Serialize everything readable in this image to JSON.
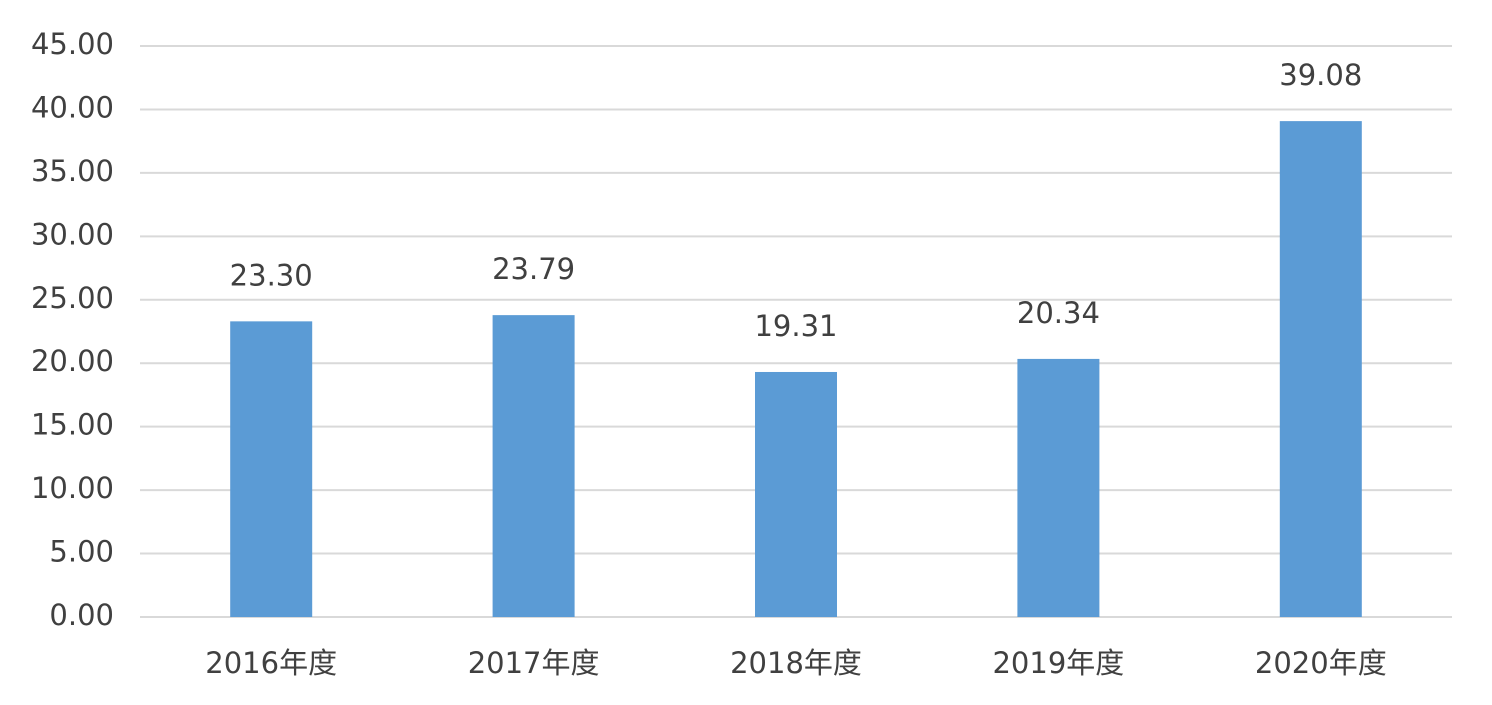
{
  "chart_data": {
    "type": "bar",
    "categories": [
      "2016年度",
      "2017年度",
      "2018年度",
      "2019年度",
      "2020年度"
    ],
    "values": [
      23.3,
      23.79,
      19.31,
      20.34,
      39.08
    ],
    "value_labels": [
      "23.30",
      "23.79",
      "19.31",
      "20.34",
      "39.08"
    ],
    "color": "#5b9bd5",
    "ylim": [
      0,
      45
    ],
    "yticks": [
      {
        "value": 0,
        "label": "0.00"
      },
      {
        "value": 5,
        "label": "5.00"
      },
      {
        "value": 10,
        "label": "10.00"
      },
      {
        "value": 15,
        "label": "15.00"
      },
      {
        "value": 20,
        "label": "20.00"
      },
      {
        "value": 25,
        "label": "25.00"
      },
      {
        "value": 30,
        "label": "30.00"
      },
      {
        "value": 35,
        "label": "35.00"
      },
      {
        "value": 40,
        "label": "40.00"
      },
      {
        "value": 45,
        "label": "45.00"
      }
    ],
    "grid": true
  }
}
